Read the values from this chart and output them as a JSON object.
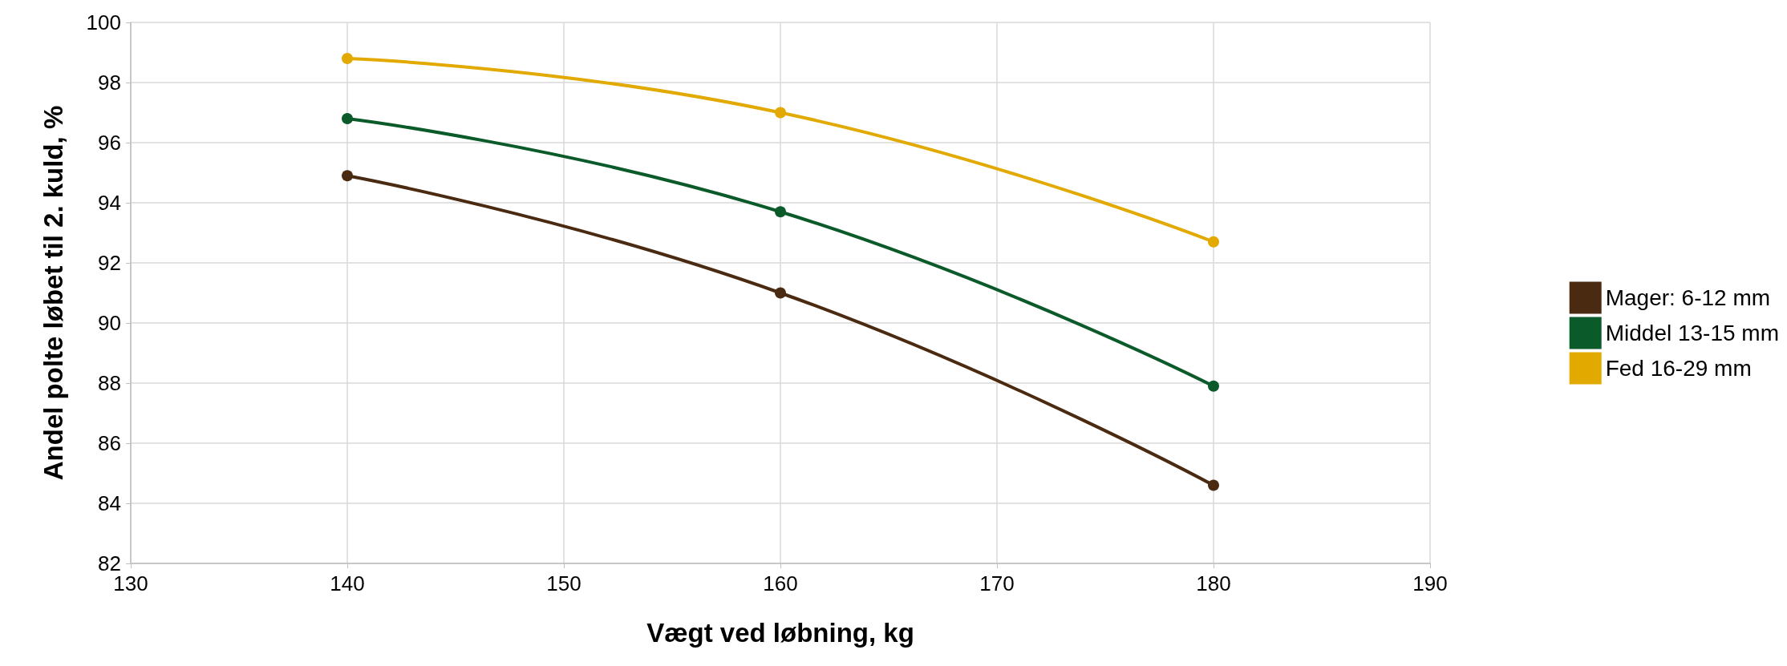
{
  "chart_data": {
    "type": "line",
    "xlabel": "Vægt ved løbning, kg",
    "ylabel": "Andel polte løbet til 2. kuld, %",
    "x": [
      140,
      160,
      180
    ],
    "series": [
      {
        "name": "Mager: 6-12 mm",
        "color": "#4a2a10",
        "values": [
          94.9,
          91.0,
          84.6
        ]
      },
      {
        "name": "Middel 13-15 mm",
        "color": "#0b5a2a",
        "values": [
          96.8,
          93.7,
          87.9
        ]
      },
      {
        "name": "Fed 16-29 mm",
        "color": "#e2a900",
        "values": [
          98.8,
          97.0,
          92.7
        ]
      }
    ],
    "xlim": [
      130,
      190
    ],
    "xticks": [
      130,
      140,
      150,
      160,
      170,
      180,
      190
    ],
    "ylim": [
      82,
      100
    ],
    "yticks": [
      82,
      84,
      86,
      88,
      90,
      92,
      94,
      96,
      98,
      100
    ],
    "grid": true,
    "legend": "right",
    "marker": "circle",
    "line_style": "solid"
  }
}
